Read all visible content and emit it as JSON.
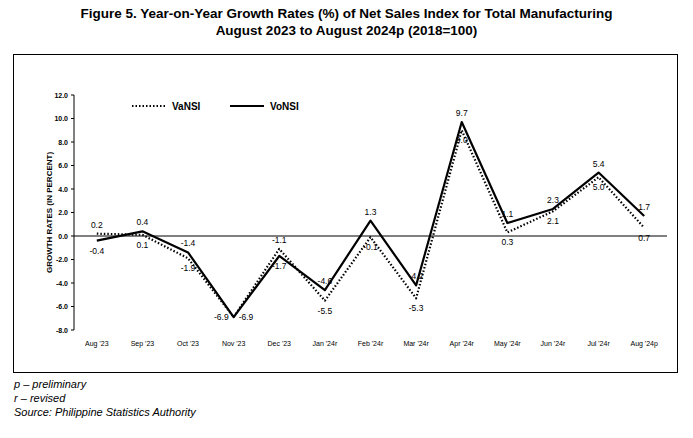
{
  "chart_data": {
    "type": "line",
    "title": "Figure 5. Year-on-Year Growth Rates (%) of Net Sales Index for Total Manufacturing",
    "subtitle": "August 2023 to August 2024p (2018=100)",
    "y_label": "GROWTH RATES (IN PERCENT)",
    "categories": [
      "Aug '23",
      "Sep '23",
      "Oct '23",
      "Nov '23",
      "Dec '23",
      "Jan '24r",
      "Feb '24r",
      "Mar '24r",
      "Apr '24r",
      "May '24r",
      "Jun '24r",
      "Jul '24r",
      "Aug '24p"
    ],
    "series": [
      {
        "name": "VaNSI",
        "color": "#000000",
        "line_style": "dotted",
        "values": [
          0.2,
          0.1,
          -1.9,
          -6.9,
          -1.1,
          -5.5,
          -0.1,
          -5.3,
          9.0,
          0.3,
          2.1,
          5.0,
          0.7
        ],
        "value_labels": [
          "0.2",
          "0.1",
          "-1.9",
          "-6.9",
          "-1.1",
          "-5.5",
          "-0.1",
          "-5.3",
          "9.0",
          "0.3",
          "2.1",
          "5.0",
          "0.7"
        ]
      },
      {
        "name": "VoNSI",
        "color": "#000000",
        "line_style": "solid",
        "values": [
          -0.4,
          0.4,
          -1.4,
          -6.9,
          -1.7,
          -4.6,
          1.3,
          -4.2,
          9.7,
          1.1,
          2.3,
          5.4,
          1.7
        ],
        "value_labels": [
          "-0.4",
          "0.4",
          "-1.4",
          "-6.9",
          "-1.7",
          "-4.6",
          "1.3",
          "-4.2",
          "9.7",
          "1.1",
          "2.3",
          "5.4",
          "1.7"
        ]
      }
    ],
    "ylim": [
      -8,
      12
    ],
    "yticks": [
      {
        "value": -8,
        "label": "-8.0"
      },
      {
        "value": -6,
        "label": "-6.0"
      },
      {
        "value": -4,
        "label": "-4.0"
      },
      {
        "value": -2,
        "label": "-2.0"
      },
      {
        "value": 0,
        "label": "0.0"
      },
      {
        "value": 2,
        "label": "2.0"
      },
      {
        "value": 4,
        "label": "4.0"
      },
      {
        "value": 6,
        "label": "6.0"
      },
      {
        "value": 8,
        "label": "8.0"
      },
      {
        "value": 10,
        "label": "10.0"
      },
      {
        "value": 12,
        "label": "12.0"
      }
    ],
    "grid": false,
    "legend": "top-left",
    "data_labels": true,
    "notes": [
      "p – preliminary",
      "r – revised",
      "Source: Philippine Statistics Authority"
    ]
  }
}
